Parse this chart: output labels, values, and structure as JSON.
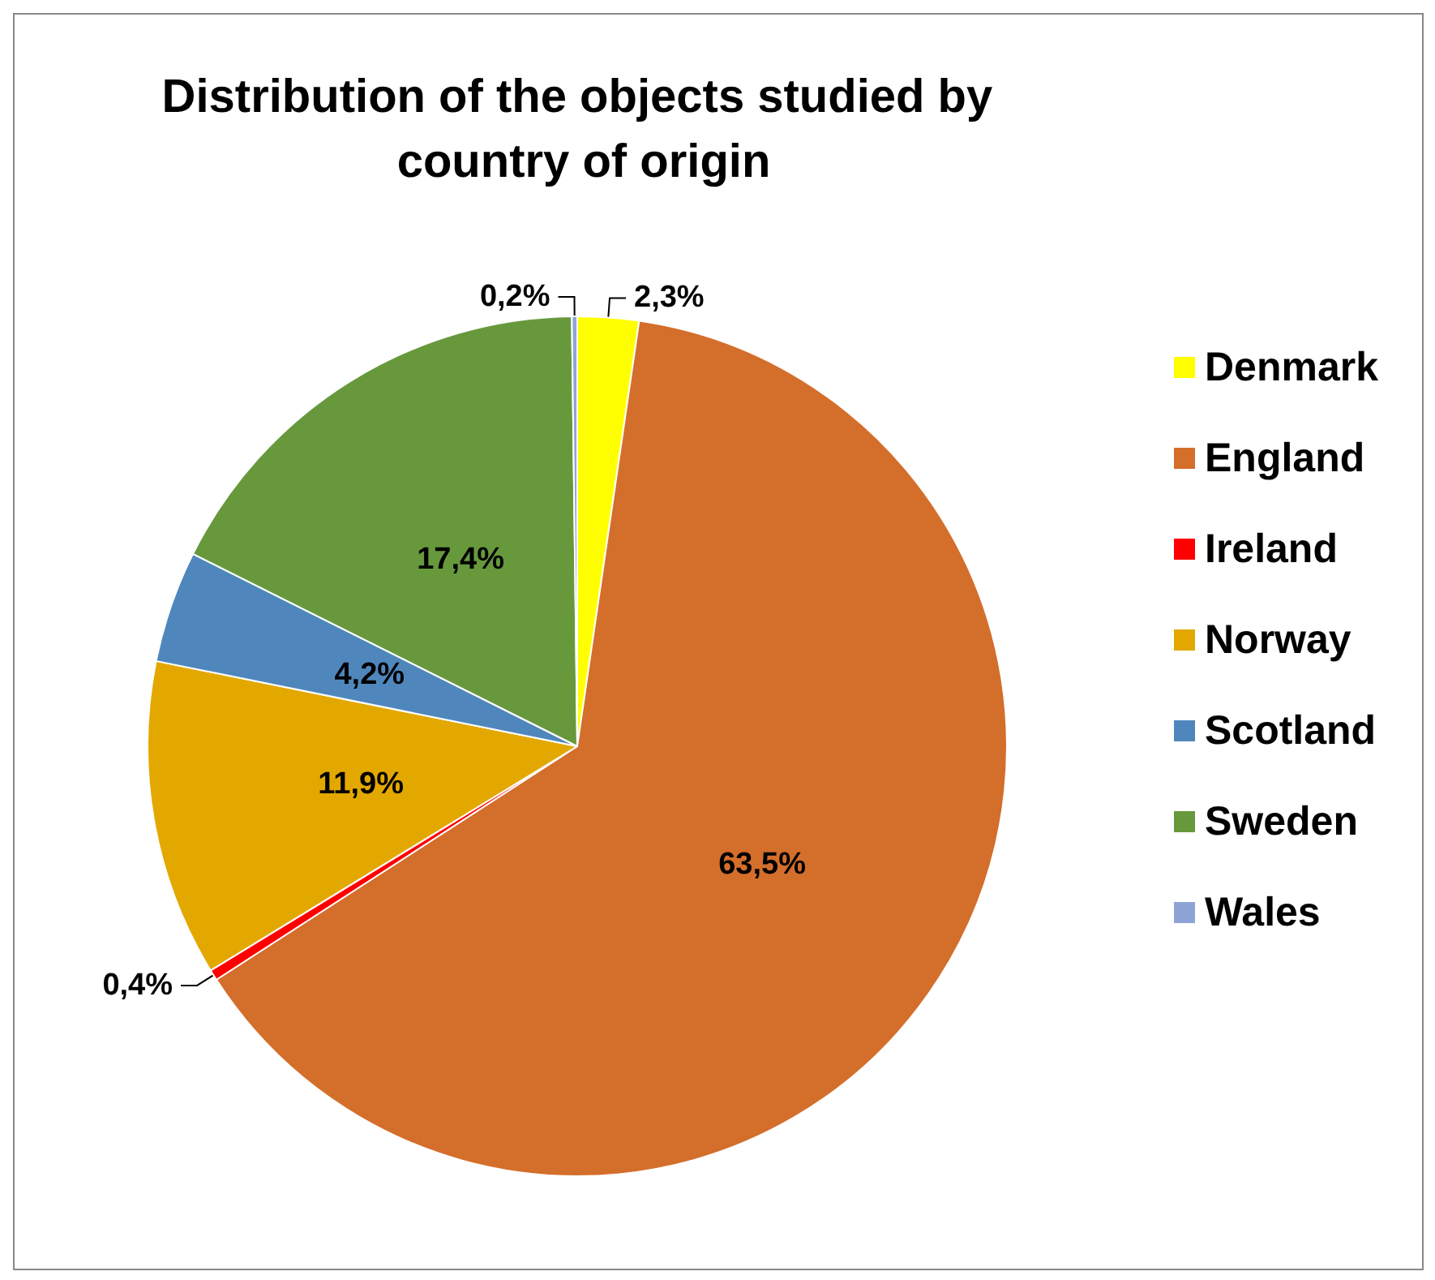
{
  "chart_data": {
    "type": "pie",
    "title": "Distribution of the objects studied by country of origin",
    "categories": [
      "Denmark",
      "England",
      "Ireland",
      "Norway",
      "Scotland",
      "Sweden",
      "Wales"
    ],
    "values": [
      2.3,
      63.5,
      0.4,
      11.9,
      4.2,
      17.4,
      0.2
    ],
    "colors": [
      "#ffff00",
      "#d46e2b",
      "#ff0000",
      "#e3a800",
      "#4f87bd",
      "#67993c",
      "#8ea4d6"
    ],
    "value_labels": [
      "2,3%",
      "63,5%",
      "0,4%",
      "11,9%",
      "4,2%",
      "17,4%",
      "0,2%"
    ],
    "legend": "right"
  }
}
